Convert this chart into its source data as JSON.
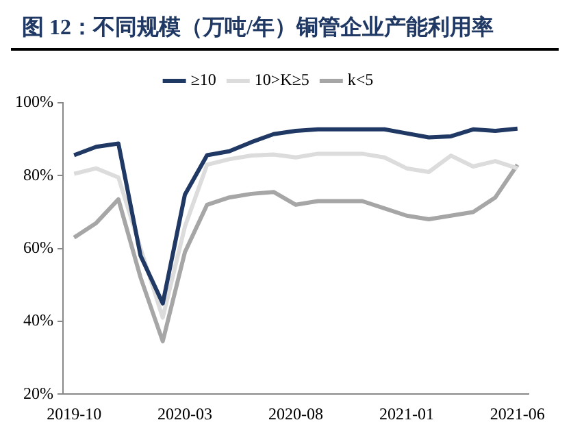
{
  "chart_data": {
    "type": "line",
    "title": "图 12：不同规模（万吨/年）铜管企业产能利用率",
    "categories": [
      "2019-10",
      null,
      null,
      null,
      null,
      "2020-03",
      null,
      null,
      null,
      null,
      "2020-08",
      null,
      null,
      null,
      null,
      "2021-01",
      null,
      null,
      null,
      null,
      "2021-06"
    ],
    "series": [
      {
        "name": "≥10",
        "color": "#1f3864",
        "values": [
          85.6,
          87.9,
          88.8,
          58,
          44.9,
          74.8,
          85.6,
          86.7,
          89.2,
          91.4,
          92.3,
          92.7,
          92.7,
          92.7,
          92.7,
          91.6,
          90.5,
          90.8,
          92.7,
          92.3,
          92.9
        ]
      },
      {
        "name": "10>K≥5",
        "color": "#dcdcdc",
        "values": [
          80.5,
          82,
          79.5,
          60,
          41,
          66,
          83,
          84.5,
          85.5,
          85.8,
          85,
          86,
          86,
          86,
          85,
          82,
          81,
          85.5,
          82.5,
          84,
          82
        ]
      },
      {
        "name": "k<5",
        "color": "#a6a6a6",
        "values": [
          63,
          67,
          73.5,
          52,
          34.5,
          59,
          72,
          74,
          75,
          75.5,
          72,
          73,
          73,
          73,
          71,
          69,
          68,
          69,
          70,
          74,
          83
        ]
      }
    ],
    "ylim": [
      20,
      100
    ],
    "yticks": [
      {
        "value": 20,
        "label": "20%"
      },
      {
        "value": 40,
        "label": "40%"
      },
      {
        "value": 60,
        "label": "60%"
      },
      {
        "value": 80,
        "label": "80%"
      },
      {
        "value": 100,
        "label": "100%"
      }
    ],
    "grid": false,
    "legend": "top",
    "marker": "none",
    "line_style": "solid"
  }
}
